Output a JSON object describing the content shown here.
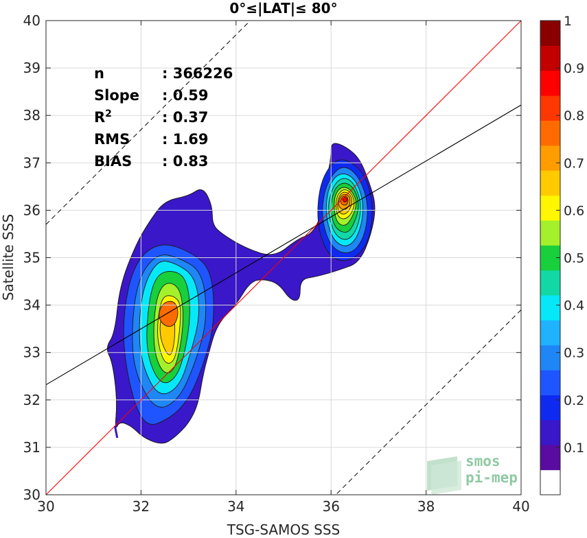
{
  "chart_data": {
    "type": "heatmap",
    "title": "0°≤|LAT|≤ 80°",
    "xlabel": "TSG-SAMOS SSS",
    "ylabel": "Satellite SSS",
    "xlim": [
      30,
      40
    ],
    "ylim": [
      30,
      40
    ],
    "x_ticks": [
      "30",
      "32",
      "34",
      "36",
      "38",
      "40"
    ],
    "y_ticks": [
      "30",
      "31",
      "32",
      "33",
      "34",
      "35",
      "36",
      "37",
      "38",
      "39",
      "40"
    ],
    "grid": true,
    "stats": [
      {
        "label": "n",
        "value": ": 366226"
      },
      {
        "label": "Slope",
        "value": ": 0.59"
      },
      {
        "label": "R",
        "sup": "2",
        "value": ": 0.37"
      },
      {
        "label": "RMS",
        "value": ": 1.69"
      },
      {
        "label": "BIAS",
        "value": ": 0.83"
      }
    ],
    "lines": {
      "one_to_one": {
        "slope": 1,
        "intercept": 0,
        "color": "#ff0000"
      },
      "fit": {
        "slope": 0.59,
        "intercept": 14.62,
        "color": "#000000"
      },
      "band_upper": {
        "slope": 1,
        "intercept": 5.7,
        "style": "dashed"
      },
      "band_lower": {
        "slope": 1,
        "intercept": -6.1,
        "style": "dashed"
      }
    },
    "density_peaks": [
      {
        "name": "",
        "x": 36.25,
        "y": 36.25
      },
      {
        "name": "",
        "x": 32.55,
        "y": 33.8
      }
    ],
    "colorbar": {
      "ticks": [
        "0.1",
        "0.2",
        "0.3",
        "0.4",
        "0.5",
        "0.6",
        "0.7",
        "0.8",
        "0.9",
        "1"
      ],
      "range": [
        0,
        1
      ],
      "colors": [
        "#ffffff",
        "#5a0ba0",
        "#3a17c8",
        "#0f2af0",
        "#1f55ff",
        "#1f86f5",
        "#1fb2ff",
        "#06e8f7",
        "#12d8a6",
        "#18cf3c",
        "#a4f02a",
        "#fff600",
        "#ffca00",
        "#ff9c00",
        "#ff6b00",
        "#ff3700",
        "#ff0000",
        "#c30000",
        "#8a0000"
      ]
    }
  },
  "watermark": {
    "line1": "smos",
    "line2": "pi-mep"
  }
}
